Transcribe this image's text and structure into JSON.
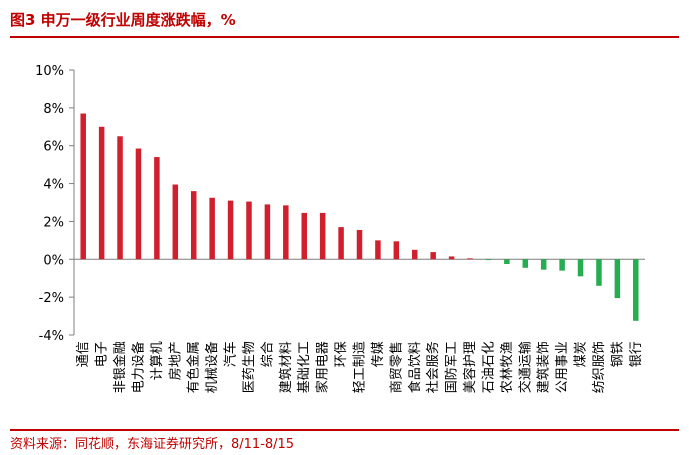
{
  "header": {
    "title": "图3 申万一级行业周度涨跌幅，%"
  },
  "footer": {
    "source": "资料来源：同花顺，东海证券研究所，8/11-8/15"
  },
  "colors": {
    "positive": "#d0202e",
    "negative": "#26ad52",
    "accent": "#c00000",
    "axis": "#7f7f7f"
  },
  "chart_data": {
    "type": "bar",
    "title": "",
    "xlabel": "",
    "ylabel": "",
    "ylim": [
      -4,
      10
    ],
    "yticks": [
      -4,
      -2,
      0,
      2,
      4,
      6,
      8,
      10
    ],
    "ytick_labels": [
      "-4%",
      "-2%",
      "0%",
      "2%",
      "4%",
      "6%",
      "8%",
      "10%"
    ],
    "grid": false,
    "categories": [
      "通信",
      "电子",
      "非银金融",
      "电力设备",
      "计算机",
      "房地产",
      "有色金属",
      "机械设备",
      "汽车",
      "医药生物",
      "综合",
      "建筑材料",
      "基础化工",
      "家用电器",
      "环保",
      "轻工制造",
      "传媒",
      "商贸零售",
      "食品饮料",
      "社会服务",
      "国防军工",
      "美容护理",
      "石油石化",
      "农林牧渔",
      "交通运输",
      "建筑装饰",
      "公用事业",
      "煤炭",
      "纺织服饰",
      "钢铁",
      "银行"
    ],
    "values": [
      7.7,
      7.0,
      6.5,
      5.85,
      5.4,
      3.95,
      3.6,
      3.25,
      3.1,
      3.05,
      2.9,
      2.85,
      2.45,
      2.45,
      1.7,
      1.55,
      1.0,
      0.95,
      0.5,
      0.38,
      0.15,
      0.05,
      -0.02,
      -0.25,
      -0.45,
      -0.55,
      -0.6,
      -0.9,
      -1.4,
      -2.05,
      -3.25
    ]
  }
}
